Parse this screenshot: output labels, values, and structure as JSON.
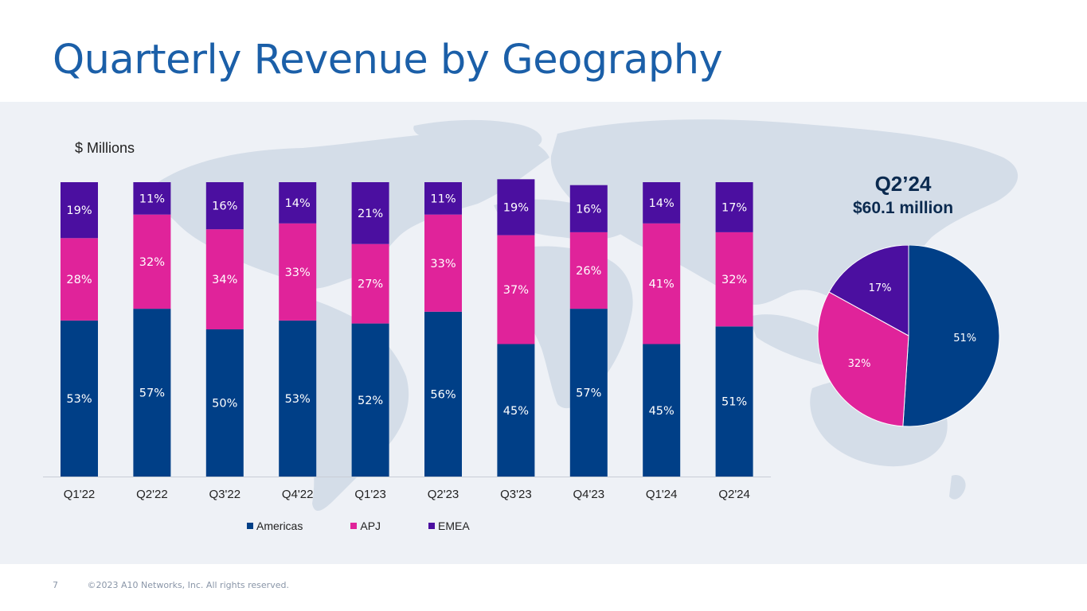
{
  "page": {
    "title": "Quarterly Revenue by Geography",
    "page_number": "7",
    "copyright": "©2023 A10 Networks, Inc. All rights reserved."
  },
  "colors": {
    "title": "#1b5fa8",
    "americas": "#003f87",
    "apj": "#e0239a",
    "emea": "#4b0fa0",
    "band": "#eef1f6",
    "map": "#d4dde8"
  },
  "chart_data": [
    {
      "type": "bar",
      "stacked": true,
      "normalized": true,
      "units_label": "$ Millions",
      "categories": [
        "Q1'22",
        "Q2'22",
        "Q3'22",
        "Q4'22",
        "Q1'23",
        "Q2'23",
        "Q3'23",
        "Q4'23",
        "Q1'24",
        "Q2'24"
      ],
      "series": [
        {
          "name": "Americas",
          "key": "americas",
          "values": [
            53,
            57,
            50,
            53,
            52,
            56,
            45,
            57,
            45,
            51
          ],
          "labels": [
            "53%",
            "57%",
            "50%",
            "53%",
            "52%",
            "56%",
            "45%",
            "57%",
            "45%",
            "51%"
          ]
        },
        {
          "name": "APJ",
          "key": "apj",
          "values": [
            28,
            32,
            34,
            33,
            27,
            33,
            37,
            26,
            41,
            32
          ],
          "labels": [
            "28%",
            "32%",
            "34%",
            "33%",
            "27%",
            "33%",
            "37%",
            "26%",
            "41%",
            "32%"
          ]
        },
        {
          "name": "EMEA",
          "key": "emea",
          "values": [
            19,
            11,
            16,
            14,
            21,
            11,
            19,
            16,
            14,
            17
          ],
          "labels": [
            "19%",
            "11%",
            "16%",
            "14%",
            "21%",
            "11%",
            "19%",
            "16%",
            "14%",
            "17%"
          ]
        }
      ],
      "legend": [
        "Americas",
        "APJ",
        "EMEA"
      ],
      "legend_position": "bottom",
      "ylim": [
        0,
        100
      ]
    },
    {
      "type": "pie",
      "title": "Q2’24",
      "subtitle": "$60.1 million",
      "slices": [
        {
          "name": "Americas",
          "key": "americas",
          "value": 51,
          "label": "51%"
        },
        {
          "name": "APJ",
          "key": "apj",
          "value": 32,
          "label": "32%"
        },
        {
          "name": "EMEA",
          "key": "emea",
          "value": 17,
          "label": "17%"
        }
      ]
    }
  ]
}
